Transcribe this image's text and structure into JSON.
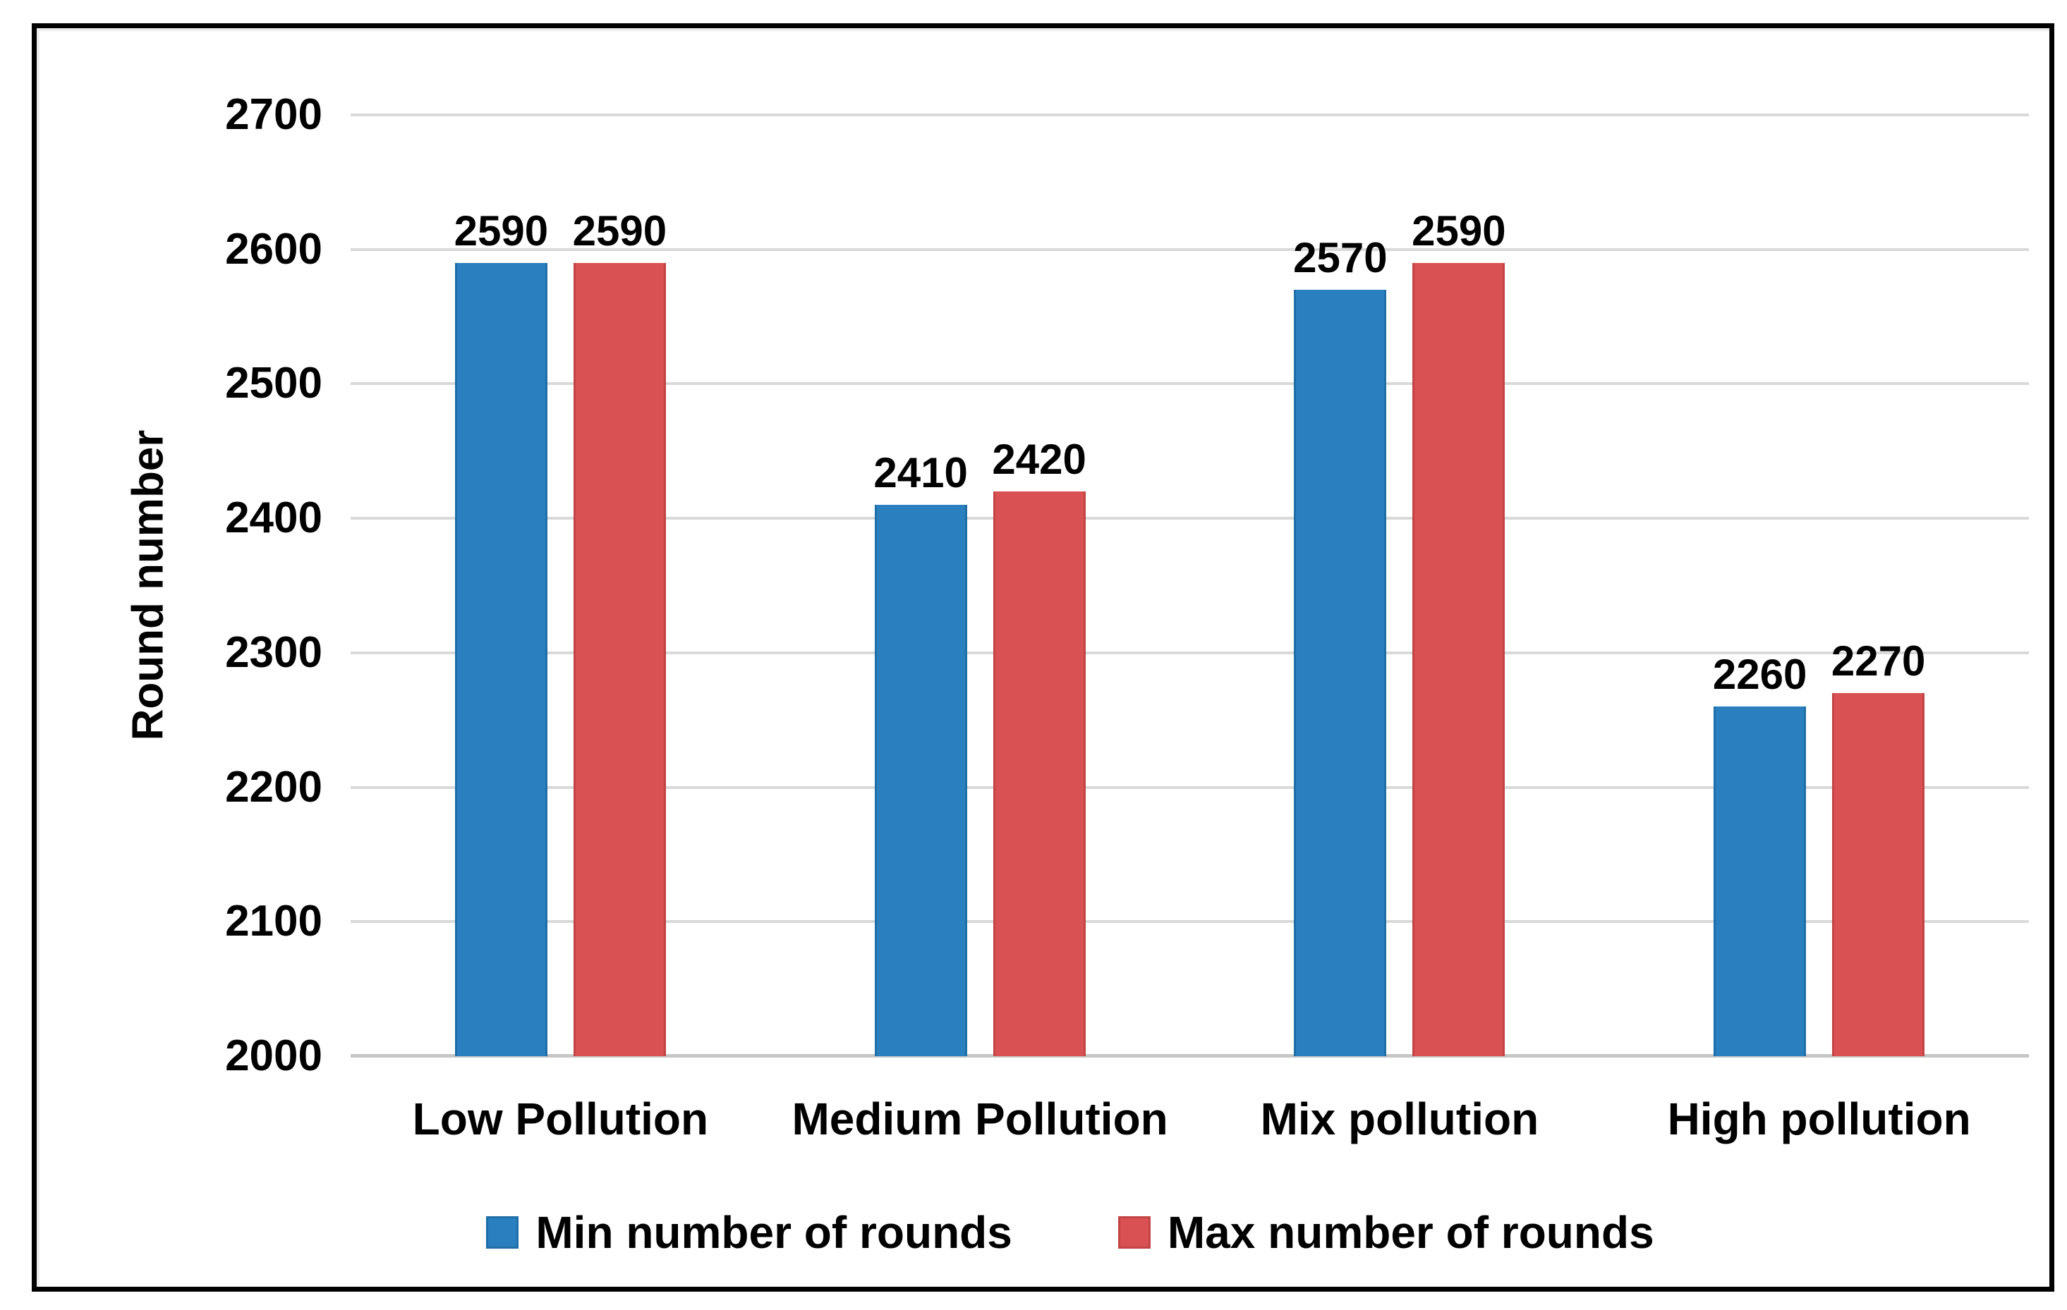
{
  "chart_data": {
    "type": "bar",
    "title": "",
    "categories": [
      "Low Pollution",
      "Medium Pollution",
      "Mix pollution",
      "High pollution"
    ],
    "series": [
      {
        "name": "Min number of rounds",
        "color": "#2A7FBE",
        "edge_color": "#1E6FA8",
        "values": [
          2590,
          2410,
          2570,
          2260
        ]
      },
      {
        "name": "Max number of rounds",
        "color": "#D95152",
        "edge_color": "#C24445",
        "values": [
          2590,
          2420,
          2590,
          2270
        ]
      }
    ],
    "xlabel": "",
    "ylabel": "Round number",
    "ylim": [
      2000,
      2700
    ],
    "y_ticks": [
      2700,
      2600,
      2500,
      2400,
      2300,
      2200,
      2100,
      2000
    ],
    "grid": true,
    "data_labels": true,
    "legend_position": "bottom"
  },
  "colors": {
    "gridline": "#D9D9D9",
    "axis_line": "#C6C6C6",
    "frame_border": "#000000",
    "background": "#FFFFFF",
    "text": "#000000"
  }
}
